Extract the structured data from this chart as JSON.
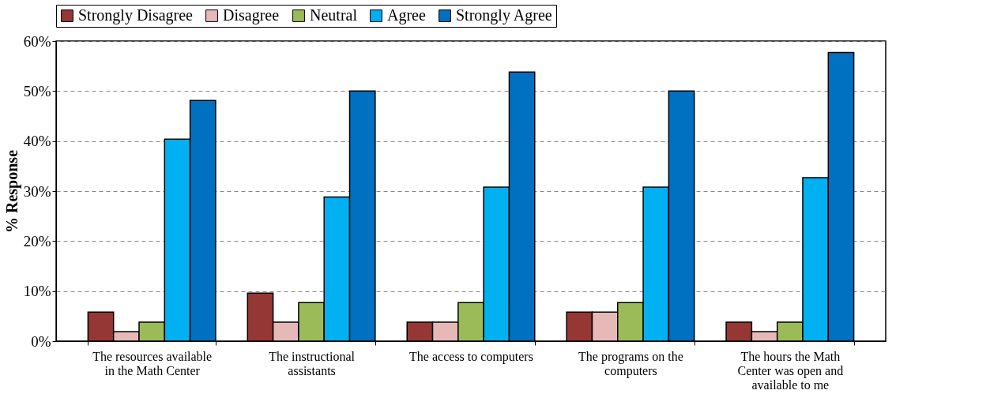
{
  "chart_data": {
    "type": "bar",
    "categories": [
      "The resources available in the Math Center",
      "The instructional assistants",
      "The access to computers",
      "The programs on the computers",
      "The hours the Math Center was open and available to me"
    ],
    "series": [
      {
        "name": "Strongly Disagree",
        "color": "#953735",
        "values": [
          5.8,
          9.6,
          3.8,
          5.8,
          3.8
        ]
      },
      {
        "name": "Disagree",
        "color": "#e6b9b8",
        "values": [
          1.9,
          3.8,
          3.8,
          5.8,
          1.9
        ]
      },
      {
        "name": "Neutral",
        "color": "#9bbb59",
        "values": [
          3.8,
          7.7,
          7.7,
          7.7,
          3.8
        ]
      },
      {
        "name": "Agree",
        "color": "#00b0f0",
        "values": [
          40.4,
          28.8,
          30.8,
          30.8,
          32.7
        ]
      },
      {
        "name": "Strongly Agree",
        "color": "#0070c0",
        "values": [
          48.1,
          50.0,
          53.8,
          50.0,
          57.7
        ]
      }
    ],
    "ylabel": "% Response",
    "ylim": [
      0,
      60
    ],
    "yticks": [
      {
        "value": 0,
        "label": "0%"
      },
      {
        "value": 10,
        "label": "10%"
      },
      {
        "value": 20,
        "label": "20%"
      },
      {
        "value": 30,
        "label": "30%"
      },
      {
        "value": 40,
        "label": "40%"
      },
      {
        "value": 50,
        "label": "50%"
      },
      {
        "value": 60,
        "label": "60%"
      }
    ],
    "grid": "y",
    "legend": "top"
  }
}
